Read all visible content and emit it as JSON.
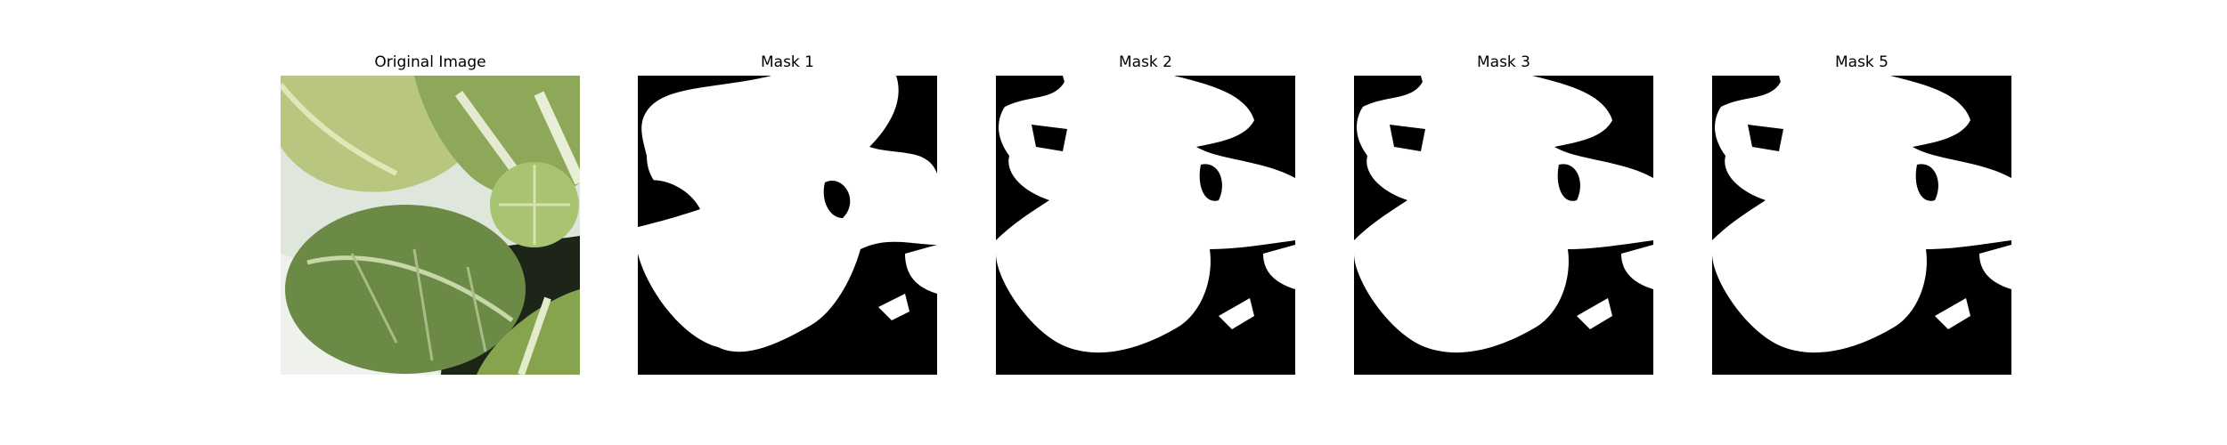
{
  "figure": {
    "panels": [
      {
        "title": "Original Image",
        "kind": "photo",
        "subject": "green-leafy-plant-leaves"
      },
      {
        "title": "Mask 1",
        "kind": "mask"
      },
      {
        "title": "Mask 2",
        "kind": "mask"
      },
      {
        "title": "Mask 3",
        "kind": "mask"
      },
      {
        "title": "Mask 5",
        "kind": "mask"
      }
    ],
    "colors": {
      "mask_foreground": "#ffffff",
      "mask_background": "#000000",
      "leaf_dark": "#5f7f3a",
      "leaf_light": "#a8c26a",
      "background_light": "#e8ece4"
    }
  }
}
